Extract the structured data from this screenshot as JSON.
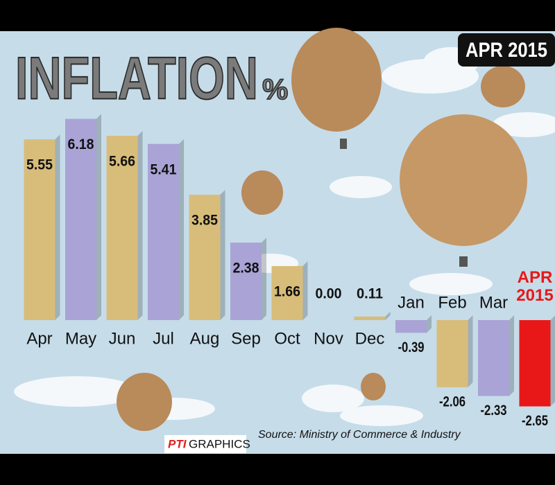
{
  "title": "INFLATION",
  "title_suffix": "%",
  "badge": "APR 2015",
  "source": "Source: Ministry of Commerce & Industry",
  "brand": {
    "logo": "PTI",
    "text": "GRAPHICS"
  },
  "chart_data": {
    "type": "bar",
    "categories": [
      "Apr",
      "May",
      "Jun",
      "Jul",
      "Aug",
      "Sep",
      "Oct",
      "Nov",
      "Dec",
      "Jan",
      "Feb",
      "Mar",
      "APR 2015"
    ],
    "values": [
      5.55,
      6.18,
      5.66,
      5.41,
      3.85,
      2.38,
      1.66,
      0.0,
      0.11,
      -0.39,
      -2.06,
      -2.33,
      -2.65
    ],
    "value_labels": [
      "5.55",
      "6.18",
      "5.66",
      "5.41",
      "3.85",
      "2.38",
      "1.66",
      "0.00",
      "0.11",
      "-0.39",
      "-2.06",
      "-2.33",
      "-2.65"
    ],
    "colors": [
      "#d8bd7a",
      "#a9a3d6",
      "#d8bd7a",
      "#a9a3d6",
      "#d8bd7a",
      "#a9a3d6",
      "#d8bd7a",
      "#a9a3d6",
      "#d8bd7a",
      "#a9a3d6",
      "#d8bd7a",
      "#a9a3d6",
      "#e81818"
    ]
  }
}
